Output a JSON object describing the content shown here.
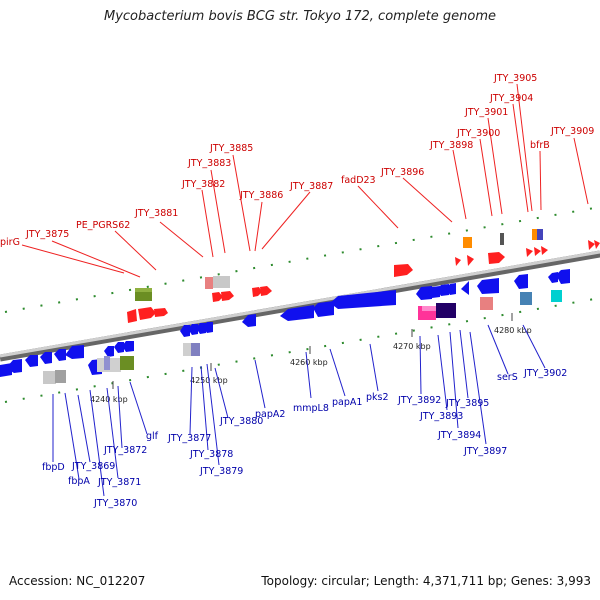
{
  "title": "Mycobacterium bovis BCG str. Tokyo 172, complete genome",
  "footer": {
    "accession": "Accession: NC_012207",
    "stats": "Topology: circular; Length: 4,371,711 bp; Genes: 3,993"
  },
  "scale_ticks": [
    {
      "label": "4240 kbp"
    },
    {
      "label": "4250 kbp"
    },
    {
      "label": "4260 kbp"
    },
    {
      "label": "4270 kbp"
    },
    {
      "label": "4280 kbp"
    }
  ],
  "forward_genes": [
    "pirG",
    "JTY_3875",
    "PE_PGRS62",
    "JTY_3881",
    "JTY_3882",
    "JTY_3883",
    "JTY_3885",
    "JTY_3886",
    "JTY_3887",
    "fadD23",
    "JTY_3896",
    "JTY_3898",
    "JTY_3900",
    "JTY_3901",
    "JTY_3904",
    "JTY_3905",
    "bfrB",
    "JTY_3909"
  ],
  "reverse_genes": [
    "fbpD",
    "fbpA",
    "JTY_3869",
    "JTY_3870",
    "JTY_3871",
    "JTY_3872",
    "glf",
    "JTY_3877",
    "JTY_3878",
    "JTY_3879",
    "JTY_3880",
    "papA2",
    "mmpL8",
    "papA1",
    "pks2",
    "JTY_3892",
    "JTY_3893",
    "JTY_3894",
    "JTY_3895",
    "JTY_3897",
    "serS",
    "JTY_3902"
  ],
  "colors": {
    "forward_gene": "#ff0000",
    "reverse_gene": "#0000ee",
    "forward_label": "#cc0000",
    "reverse_label": "#0000aa",
    "backbone": "#999999",
    "gc_tick": "#2e8b2e"
  }
}
